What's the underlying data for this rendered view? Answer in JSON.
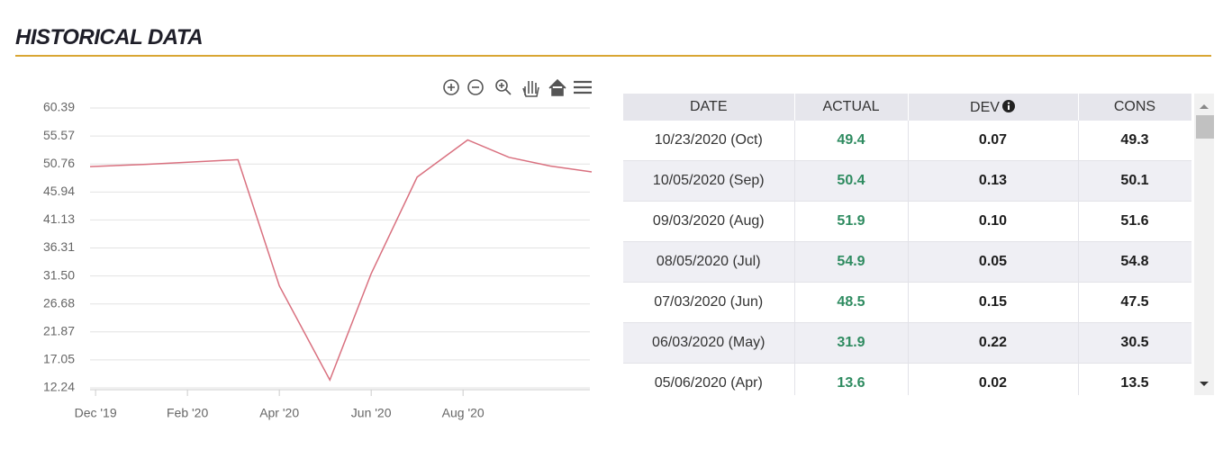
{
  "header": {
    "title": "HISTORICAL DATA"
  },
  "chart_data": {
    "type": "line",
    "x": [
      -0.12,
      1.1,
      3.1,
      4.0,
      5.1,
      6.0,
      7.0,
      8.1,
      9.0,
      9.9,
      10.8
    ],
    "series": [
      {
        "color": "#d9707f",
        "values": [
          50.3,
          50.7,
          51.5,
          29.8,
          13.6,
          31.9,
          48.5,
          54.9,
          51.9,
          50.4,
          49.4
        ]
      }
    ],
    "xlim": [
      -0.12,
      10.8
    ],
    "xticks": [
      {
        "value": 0,
        "label": "Dec '19"
      },
      {
        "value": 2,
        "label": "Feb '20"
      },
      {
        "value": 4,
        "label": "Apr '20"
      },
      {
        "value": 6,
        "label": "Jun '20"
      },
      {
        "value": 8,
        "label": "Aug '20"
      }
    ],
    "ylim": [
      12.24,
      60.39
    ],
    "yticks": [
      12.24,
      17.05,
      21.87,
      26.68,
      {
        "value": 31.5,
        "label": "31.50"
      },
      36.31,
      41.13,
      45.94,
      50.76,
      55.57,
      60.39
    ],
    "grid": true
  },
  "table": {
    "columns": [
      "DATE",
      "ACTUAL",
      "DEV",
      "CONS"
    ],
    "rows": [
      [
        "10/23/2020 (Oct)",
        "49.4",
        "0.07",
        "49.3"
      ],
      [
        "10/05/2020 (Sep)",
        "50.4",
        "0.13",
        "50.1"
      ],
      [
        "09/03/2020 (Aug)",
        "51.9",
        "0.10",
        "51.6"
      ],
      [
        "08/05/2020 (Jul)",
        "54.9",
        "0.05",
        "54.8"
      ],
      [
        "07/03/2020 (Jun)",
        "48.5",
        "0.15",
        "47.5"
      ],
      [
        "06/03/2020 (May)",
        "31.9",
        "0.22",
        "30.5"
      ],
      [
        "05/06/2020 (Apr)",
        "13.6",
        "0.02",
        "13.5"
      ]
    ]
  }
}
